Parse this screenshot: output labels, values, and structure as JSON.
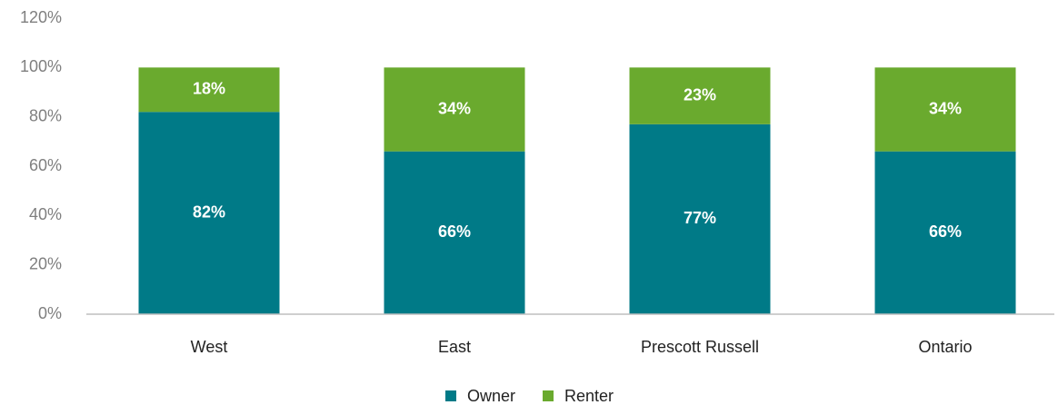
{
  "chart_data": {
    "type": "stacked_bar",
    "categories": [
      "West",
      "East",
      "Prescott Russell",
      "Ontario"
    ],
    "series": [
      {
        "name": "Owner",
        "color": "#007a87",
        "values": [
          82,
          66,
          77,
          66
        ],
        "value_labels": [
          "82%",
          "66%",
          "77%",
          "66%"
        ]
      },
      {
        "name": "Renter",
        "color": "#6aaa2e",
        "values": [
          18,
          34,
          23,
          34
        ],
        "value_labels": [
          "18%",
          "34%",
          "23%",
          "34%"
        ]
      }
    ],
    "ylim": [
      0,
      120
    ],
    "yticks": [
      {
        "value": 0,
        "label": "0%"
      },
      {
        "value": 20,
        "label": "20%"
      },
      {
        "value": 40,
        "label": "40%"
      },
      {
        "value": 60,
        "label": "60%"
      },
      {
        "value": 80,
        "label": "80%"
      },
      {
        "value": 100,
        "label": "100%"
      },
      {
        "value": 120,
        "label": "120%"
      }
    ],
    "grid": false,
    "legend": "bottom"
  }
}
